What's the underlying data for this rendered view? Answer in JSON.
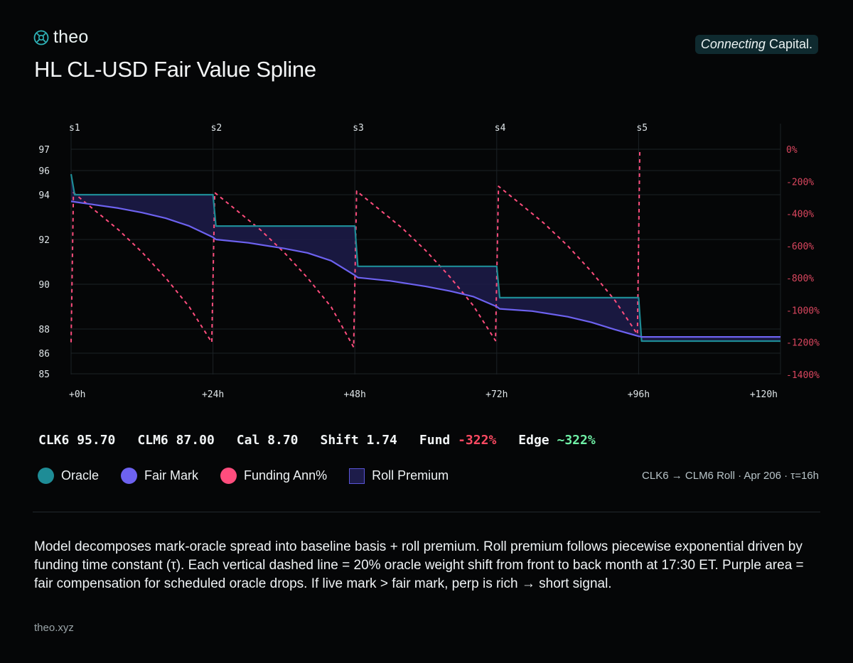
{
  "brand": {
    "name": "theo",
    "tagline_italic": "Connecting",
    "tagline_rest": "Capital."
  },
  "title": "HL CL-USD Fair Value Spline",
  "chart_data": {
    "type": "line",
    "x_ticks": [
      0,
      24,
      48,
      72,
      96,
      120
    ],
    "x_tick_labels": [
      "+0h",
      "+24h",
      "+48h",
      "+72h",
      "+96h",
      "+120h"
    ],
    "xlim": [
      0,
      120
    ],
    "y_ticks": [
      85,
      86,
      88,
      90,
      92,
      94,
      96,
      97
    ],
    "ylim": [
      85,
      97
    ],
    "y2_ticks": [
      0,
      -200,
      -400,
      -600,
      -800,
      -1000,
      -1200,
      -1400
    ],
    "y2_tick_labels": [
      "0%",
      "-200%",
      "-400%",
      "-600%",
      "-800%",
      "-1000%",
      "-1200%",
      "-1400%"
    ],
    "y2lim": [
      -1400,
      0
    ],
    "shift_markers": [
      {
        "label": "s1",
        "x": 0
      },
      {
        "label": "s2",
        "x": 24
      },
      {
        "label": "s3",
        "x": 48
      },
      {
        "label": "s4",
        "x": 72
      },
      {
        "label": "s5",
        "x": 96
      }
    ],
    "grid": true,
    "series": [
      {
        "name": "Oracle",
        "color": "#1e8c96",
        "axis": "left",
        "step": true,
        "x": [
          0,
          0.6,
          24,
          24.5,
          48,
          48.5,
          72,
          72.5,
          96,
          96.5,
          120
        ],
        "y": [
          95.7,
          94.0,
          94.0,
          92.6,
          92.6,
          90.8,
          90.8,
          89.4,
          89.4,
          87.0,
          87.0
        ]
      },
      {
        "name": "Fair Mark",
        "color": "#6d62f0",
        "axis": "left",
        "x": [
          0,
          4,
          8,
          12,
          16,
          20,
          24,
          24.5,
          30,
          36,
          40,
          44,
          48,
          48.5,
          54,
          60,
          64,
          68,
          72,
          72.5,
          78,
          84,
          88,
          92,
          96,
          96.5,
          120
        ],
        "y": [
          93.7,
          93.55,
          93.4,
          93.2,
          92.95,
          92.6,
          92.1,
          92.0,
          91.85,
          91.6,
          91.4,
          91.05,
          90.4,
          90.3,
          90.15,
          89.9,
          89.7,
          89.45,
          89.0,
          88.9,
          88.8,
          88.55,
          88.3,
          87.95,
          87.4,
          87.35,
          87.35
        ]
      },
      {
        "name": "Funding Ann%",
        "color": "#ff4d7d",
        "axis": "right",
        "dashed": true,
        "x": [
          0,
          0.4,
          4,
          8,
          12,
          16,
          20,
          23.8,
          24.3,
          28,
          32,
          36,
          40,
          44,
          47.8,
          48.3,
          52,
          56,
          60,
          64,
          68,
          71.8,
          72.3,
          76,
          80,
          84,
          88,
          92,
          95.8,
          96.2
        ],
        "y": [
          -1200,
          -270,
          -380,
          -500,
          -640,
          -800,
          -980,
          -1200,
          -270,
          -380,
          -500,
          -640,
          -800,
          -980,
          -1230,
          -260,
          -370,
          -490,
          -630,
          -790,
          -970,
          -1190,
          -230,
          -340,
          -460,
          -600,
          -760,
          -940,
          -1150,
          0
        ]
      },
      {
        "name": "Roll Premium",
        "color": "#1d1c4a",
        "type": "area",
        "between": [
          "Oracle",
          "Fair Mark"
        ]
      }
    ]
  },
  "stats": [
    {
      "label": "CLK6",
      "value": "95.70",
      "tone": ""
    },
    {
      "label": "CLM6",
      "value": "87.00",
      "tone": ""
    },
    {
      "label": "Cal",
      "value": "8.70",
      "tone": ""
    },
    {
      "label": "Shift",
      "value": "1.74",
      "tone": ""
    },
    {
      "label": "Fund",
      "value": "-322%",
      "tone": "neg"
    },
    {
      "label": "Edge",
      "value": "~322%",
      "tone": "pos"
    }
  ],
  "legend": [
    {
      "label": "Oracle",
      "color": "#1e8c96",
      "shape": "dot"
    },
    {
      "label": "Fair Mark",
      "color": "#6d62f0",
      "shape": "dot"
    },
    {
      "label": "Funding Ann%",
      "color": "#ff4d7d",
      "shape": "dot"
    },
    {
      "label": "Roll Premium",
      "color": "#1d1c4a",
      "shape": "square"
    }
  ],
  "meta": "CLK6 → CLM6 Roll · Apr 206 · τ=16h",
  "description": "Model decomposes mark-oracle spread into baseline basis + roll premium. Roll premium follows piecewise exponential driven by funding time constant (τ). Each vertical dashed line = 20% oracle weight shift from front to back month at 17:30 ET. Purple area = fair compensation for scheduled oracle drops. If live mark > fair mark, perp is rich → short signal.",
  "footer": "theo.xyz"
}
